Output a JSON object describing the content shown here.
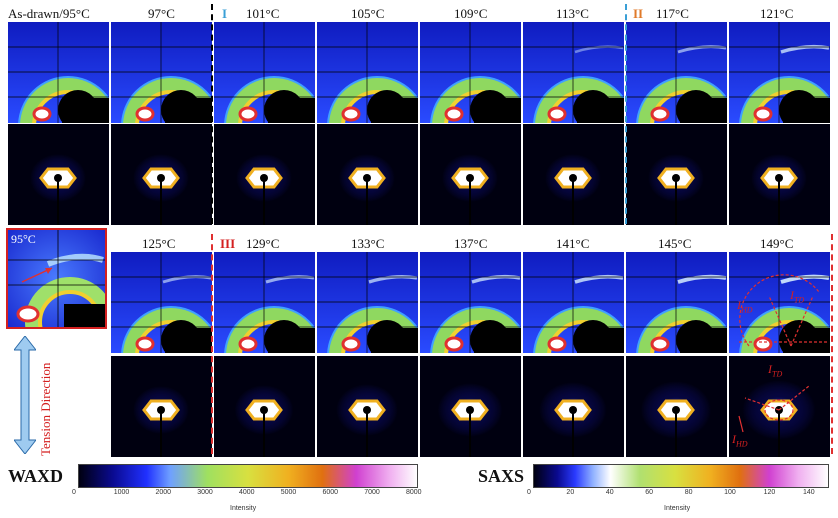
{
  "row1_labels": [
    "As-drawn/95°C",
    "97°C",
    "101°C",
    "105°C",
    "109°C",
    "113°C",
    "117°C",
    "121°C"
  ],
  "row2_labels": [
    "125°C",
    "129°C",
    "133°C",
    "137°C",
    "141°C",
    "145°C",
    "149°C"
  ],
  "stage_labels": [
    "I",
    "II",
    "III"
  ],
  "inset_label": "95°C",
  "tension_label": "Tension Direction",
  "annotations": {
    "itd": "I",
    "itd_sub": "TD",
    "ihd": "I",
    "ihd_sub": "HD"
  },
  "waxd": {
    "title": "WAXD",
    "ticks": [
      "0",
      "1000",
      "2000",
      "3000",
      "4000",
      "5000",
      "6000",
      "7000",
      "8000"
    ],
    "axis_label": "Intensity"
  },
  "saxs": {
    "title": "SAXS",
    "ticks": [
      "0",
      "20",
      "40",
      "60",
      "80",
      "100",
      "120",
      "140"
    ],
    "axis_label": "Intensity"
  },
  "colors": {
    "stage_i": "#3a9fd6",
    "stage_ii": "#e07a2a",
    "stage_iii": "#d42020"
  }
}
